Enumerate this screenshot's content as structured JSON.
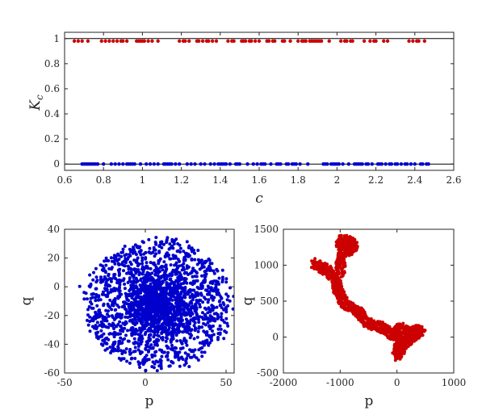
{
  "chart_data": [
    {
      "type": "scatter",
      "xlabel": "c",
      "ylabel": "K",
      "ylabel_subscript": "c",
      "xlim": [
        0.6,
        2.6
      ],
      "ylim": [
        -0.05,
        1.05
      ],
      "xticks": [
        "0.6",
        "0.8",
        "1",
        "1.2",
        "1.4",
        "1.6",
        "1.8",
        "2",
        "2.2",
        "2.4",
        "2.6"
      ],
      "yticks": [
        "0",
        "0.2",
        "0.4",
        "0.6",
        "0.8",
        "1"
      ],
      "reference_lines": [
        0,
        1
      ],
      "colors": {
        "chaotic": "#cc0000",
        "regular": "#0000cc"
      },
      "series": [
        {
          "role": "K≈1",
          "y": 0.98,
          "x": [
            0.65,
            0.67,
            0.69,
            0.72,
            0.79,
            0.81,
            0.83,
            0.85,
            0.87,
            0.89,
            0.9,
            0.92,
            0.97,
            0.98,
            0.99,
            1.0,
            1.01,
            1.03,
            1.05,
            1.08,
            1.19,
            1.21,
            1.22,
            1.24,
            1.28,
            1.29,
            1.31,
            1.33,
            1.34,
            1.36,
            1.38,
            1.44,
            1.46,
            1.47,
            1.51,
            1.52,
            1.53,
            1.55,
            1.56,
            1.58,
            1.6,
            1.64,
            1.65,
            1.67,
            1.68,
            1.72,
            1.73,
            1.76,
            1.8,
            1.82,
            1.83,
            1.84,
            1.86,
            1.87,
            1.88,
            1.89,
            1.9,
            1.91,
            1.92,
            1.96,
            2.02,
            2.04,
            2.05,
            2.07,
            2.08,
            2.14,
            2.17,
            2.19,
            2.2,
            2.24,
            2.26,
            2.37,
            2.39,
            2.41,
            2.42,
            2.45
          ]
        },
        {
          "role": "K≈0",
          "y": 0.0,
          "x": [
            0.69,
            0.7,
            0.71,
            0.72,
            0.73,
            0.74,
            0.75,
            0.76,
            0.77,
            0.8,
            0.84,
            0.86,
            0.88,
            0.9,
            0.92,
            0.93,
            0.94,
            0.95,
            0.96,
            0.99,
            1.02,
            1.04,
            1.06,
            1.08,
            1.11,
            1.12,
            1.13,
            1.14,
            1.15,
            1.17,
            1.19,
            1.23,
            1.25,
            1.27,
            1.3,
            1.32,
            1.35,
            1.37,
            1.39,
            1.4,
            1.41,
            1.42,
            1.43,
            1.45,
            1.48,
            1.49,
            1.5,
            1.54,
            1.57,
            1.59,
            1.61,
            1.62,
            1.63,
            1.66,
            1.69,
            1.7,
            1.71,
            1.74,
            1.75,
            1.77,
            1.78,
            1.79,
            1.81,
            1.85,
            1.93,
            1.94,
            1.95,
            1.97,
            1.98,
            1.99,
            2.0,
            2.01,
            2.03,
            2.06,
            2.09,
            2.1,
            2.11,
            2.12,
            2.13,
            2.15,
            2.16,
            2.18,
            2.21,
            2.22,
            2.23,
            2.25,
            2.27,
            2.28,
            2.3,
            2.31,
            2.33,
            2.35,
            2.36,
            2.38,
            2.4,
            2.43,
            2.44,
            2.46,
            2.47
          ]
        }
      ]
    },
    {
      "type": "scatter",
      "xlabel": "p",
      "ylabel": "q",
      "xlim": [
        -50,
        55
      ],
      "ylim": [
        -60,
        40
      ],
      "xticks": [
        "-50",
        "0",
        "50"
      ],
      "yticks": [
        "-60",
        "-40",
        "-20",
        "0",
        "20",
        "40"
      ],
      "color": "#0000cc",
      "description_shape": "dense ring-structured cloud",
      "cloud": {
        "center": [
          8,
          -12
        ],
        "rx": 45,
        "ry": 45,
        "rings": [
          14,
          19,
          24,
          29,
          34,
          39,
          43
        ],
        "count": 2400,
        "point_radius_units": 1.2
      }
    },
    {
      "type": "scatter",
      "xlabel": "p",
      "ylabel": "q",
      "xlim": [
        -2000,
        1000
      ],
      "ylim": [
        -500,
        1500
      ],
      "xticks": [
        "-2000",
        "-1000",
        "0",
        "1000"
      ],
      "yticks": [
        "-500",
        "0",
        "500",
        "1000",
        "1500"
      ],
      "color": "#cc0000",
      "trajectory": [
        [
          -1450,
          1030
        ],
        [
          -1380,
          990
        ],
        [
          -1300,
          960
        ],
        [
          -1220,
          920
        ],
        [
          -1150,
          860
        ],
        [
          -1100,
          780
        ],
        [
          -1060,
          700
        ],
        [
          -1030,
          630
        ],
        [
          -980,
          560
        ],
        [
          -940,
          480
        ],
        [
          -860,
          430
        ],
        [
          -760,
          390
        ],
        [
          -660,
          330
        ],
        [
          -580,
          260
        ],
        [
          -520,
          200
        ],
        [
          -440,
          170
        ],
        [
          -360,
          150
        ],
        [
          -280,
          140
        ],
        [
          -200,
          110
        ],
        [
          -120,
          60
        ],
        [
          -40,
          30
        ],
        [
          20,
          10
        ],
        [
          60,
          -40
        ],
        [
          40,
          -120
        ],
        [
          20,
          -200
        ],
        [
          0,
          -250
        ],
        [
          60,
          -190
        ],
        [
          120,
          -90
        ],
        [
          200,
          -60
        ],
        [
          260,
          0
        ],
        [
          330,
          30
        ],
        [
          390,
          80
        ],
        [
          430,
          90
        ],
        [
          350,
          100
        ],
        [
          260,
          60
        ],
        [
          150,
          80
        ],
        [
          80,
          120
        ],
        [
          0,
          100
        ],
        [
          -60,
          60
        ]
      ],
      "branch": [
        [
          -1060,
          700
        ],
        [
          -1040,
          820
        ],
        [
          -1000,
          930
        ],
        [
          -980,
          1060
        ],
        [
          -960,
          1180
        ],
        [
          -930,
          1280
        ],
        [
          -880,
          1340
        ],
        [
          -800,
          1320
        ],
        [
          -760,
          1270
        ],
        [
          -800,
          1220
        ],
        [
          -900,
          1180
        ],
        [
          -1000,
          1300
        ],
        [
          -960,
          1360
        ]
      ],
      "cloud_count": 1700,
      "blob_radius": [
        40,
        90
      ]
    }
  ]
}
